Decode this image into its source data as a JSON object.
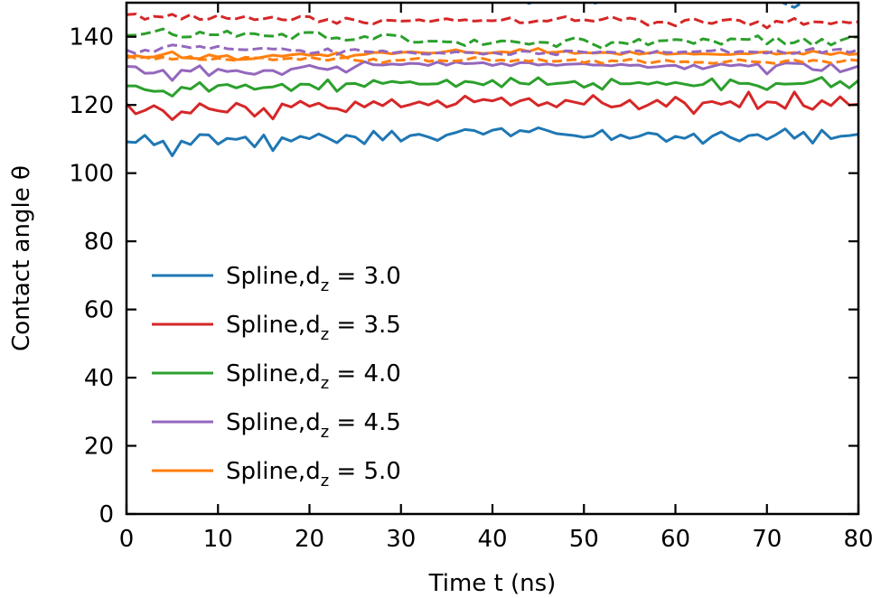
{
  "chart_data": {
    "type": "line",
    "xlabel": "Time t (ns)",
    "ylabel": "Contact angle θ",
    "xlim": [
      0,
      80
    ],
    "ylim": [
      0,
      150
    ],
    "xticks": [
      0,
      10,
      20,
      30,
      40,
      50,
      60,
      70,
      80
    ],
    "yticks": [
      0,
      20,
      40,
      60,
      80,
      100,
      120,
      140
    ],
    "x": [
      0,
      1,
      2,
      3,
      4,
      5,
      6,
      7,
      8,
      9,
      10,
      11,
      12,
      13,
      14,
      15,
      16,
      17,
      18,
      19,
      20,
      21,
      22,
      23,
      24,
      25,
      26,
      27,
      28,
      29,
      30,
      31,
      32,
      33,
      34,
      35,
      36,
      37,
      38,
      39,
      40,
      41,
      42,
      43,
      44,
      45,
      46,
      47,
      48,
      49,
      50,
      51,
      52,
      53,
      54,
      55,
      56,
      57,
      58,
      59,
      60,
      61,
      62,
      63,
      64,
      65,
      66,
      67,
      68,
      69,
      70,
      71,
      72,
      73,
      74,
      75,
      76,
      77,
      78,
      79,
      80
    ],
    "legend_position": "lower-left",
    "grid": false,
    "series": [
      {
        "name": "Spline,d_z = 3.0",
        "label_prefix": "Spline,d",
        "label_sub": "z",
        "label_value": "= 3.0",
        "color": "#1f77b4",
        "linestyle": "solid",
        "values": [
          109.2,
          109.0,
          111.1,
          108.3,
          109.4,
          105.1,
          109.4,
          108.4,
          111.3,
          111.2,
          108.5,
          110.2,
          109.9,
          110.6,
          107.7,
          111.2,
          106.6,
          110.4,
          109.4,
          110.8,
          110.1,
          111.5,
          110.3,
          108.9,
          111.1,
          110.6,
          108.6,
          112.3,
          109.7,
          112.3,
          109.4,
          111.0,
          111.4,
          110.6,
          109.6,
          111.2,
          111.9,
          112.8,
          112.5,
          111.4,
          112.6,
          113.1,
          110.9,
          112.5,
          112.1,
          113.3,
          112.5,
          111.6,
          111.3,
          111.0,
          110.5,
          110.9,
          112.6,
          109.8,
          111.2,
          110.2,
          110.8,
          111.8,
          111.4,
          109.3,
          110.8,
          110.2,
          111.5,
          108.7,
          110.8,
          112.1,
          110.5,
          109.4,
          111.0,
          111.3,
          109.9,
          111.3,
          113.0,
          110.2,
          112.0,
          108.8,
          112.6,
          110.1,
          110.8,
          111.0,
          111.4
        ]
      },
      {
        "name": "Spline,d_z = 3.5",
        "label_prefix": "Spline,d",
        "label_sub": "z",
        "label_value": "= 3.5",
        "color": "#d62728",
        "linestyle": "solid",
        "values": [
          120.3,
          117.4,
          118.4,
          119.8,
          118.3,
          115.7,
          118.0,
          117.6,
          120.4,
          118.9,
          118.3,
          117.9,
          120.5,
          119.4,
          116.7,
          119.0,
          115.9,
          120.3,
          119.4,
          121.1,
          119.6,
          120.5,
          119.1,
          118.9,
          118.0,
          120.9,
          119.4,
          121.0,
          119.8,
          121.6,
          119.4,
          120.1,
          120.9,
          120.0,
          121.2,
          119.4,
          120.3,
          122.6,
          120.9,
          121.6,
          121.2,
          122.1,
          119.9,
          121.2,
          121.9,
          119.8,
          120.7,
          119.4,
          121.4,
          120.8,
          120.2,
          122.8,
          120.6,
          119.4,
          119.8,
          121.4,
          118.8,
          120.0,
          121.4,
          119.6,
          122.3,
          120.6,
          117.5,
          120.6,
          121.0,
          120.2,
          121.0,
          119.4,
          123.8,
          118.9,
          120.9,
          120.7,
          119.0,
          123.8,
          119.8,
          118.7,
          121.3,
          119.8,
          122.4,
          120.0,
          120.2
        ]
      },
      {
        "name": "Spline,d_z = 4.0",
        "label_prefix": "Spline,d",
        "label_sub": "z",
        "label_value": "= 4.0",
        "color": "#2ca02c",
        "linestyle": "solid",
        "values": [
          125.6,
          125.6,
          124.5,
          124.0,
          124.1,
          122.6,
          125.2,
          124.7,
          126.6,
          124.0,
          125.7,
          126.0,
          125.0,
          125.9,
          124.6,
          125.1,
          125.3,
          126.1,
          124.2,
          126.1,
          126.0,
          124.6,
          127.4,
          124.0,
          126.2,
          126.3,
          125.4,
          127.2,
          126.3,
          126.9,
          126.5,
          126.8,
          126.1,
          126.1,
          126.2,
          127.3,
          125.4,
          126.9,
          126.6,
          125.9,
          127.2,
          125.3,
          127.9,
          126.4,
          126.1,
          128.0,
          126.0,
          126.3,
          126.5,
          126.9,
          125.2,
          126.3,
          124.6,
          127.6,
          126.2,
          126.2,
          126.6,
          126.1,
          126.7,
          126.0,
          126.6,
          126.1,
          125.6,
          126.0,
          127.7,
          124.4,
          127.4,
          126.3,
          126.3,
          125.6,
          124.5,
          126.3,
          126.1,
          126.2,
          126.3,
          127.0,
          128.1,
          125.3,
          126.9,
          125.0,
          127.2
        ]
      },
      {
        "name": "Spline,d_z = 4.5",
        "label_prefix": "Spline,d",
        "label_sub": "z",
        "label_value": "= 4.5",
        "color": "#9467bd",
        "linestyle": "solid",
        "values": [
          131.3,
          131.2,
          129.3,
          129.4,
          130.2,
          127.2,
          130.2,
          129.9,
          131.5,
          128.6,
          130.5,
          129.8,
          130.1,
          129.4,
          129.0,
          130.1,
          130.1,
          128.9,
          130.5,
          131.0,
          131.6,
          130.8,
          130.4,
          131.2,
          129.6,
          131.2,
          132.7,
          131.8,
          131.7,
          132.0,
          131.8,
          132.2,
          132.1,
          131.6,
          132.6,
          131.7,
          132.6,
          132.1,
          132.2,
          132.4,
          131.6,
          132.2,
          131.5,
          132.4,
          132.4,
          131.7,
          132.0,
          131.6,
          131.9,
          132.0,
          132.1,
          131.7,
          131.7,
          131.5,
          131.9,
          131.6,
          131.7,
          131.0,
          131.2,
          131.5,
          131.6,
          130.6,
          131.7,
          130.6,
          131.3,
          132.0,
          131.5,
          131.8,
          131.4,
          132.0,
          129.1,
          131.5,
          132.3,
          132.2,
          132.1,
          130.4,
          130.1,
          132.1,
          129.7,
          130.5,
          131.4
        ]
      },
      {
        "name": "Spline,d_z = 5.0",
        "label_prefix": "Spline,d",
        "label_sub": "z",
        "label_value": "= 5.0",
        "color": "#ff7f0e",
        "linestyle": "solid",
        "values": [
          133.8,
          134.5,
          134.0,
          134.1,
          134.8,
          135.6,
          133.9,
          133.7,
          133.6,
          134.7,
          134.1,
          134.5,
          133.3,
          133.4,
          133.6,
          134.1,
          134.6,
          134.3,
          134.7,
          135.0,
          134.6,
          134.8,
          134.4,
          135.3,
          133.9,
          134.6,
          134.8,
          135.4,
          135.4,
          135.0,
          135.4,
          135.6,
          135.4,
          135.2,
          135.3,
          135.7,
          136.2,
          135.5,
          135.4,
          135.1,
          135.3,
          135.6,
          135.4,
          136.3,
          135.7,
          136.6,
          135.4,
          135.5,
          135.8,
          135.1,
          135.4,
          135.2,
          135.4,
          135.3,
          134.8,
          135.6,
          134.9,
          135.2,
          135.5,
          134.9,
          135.0,
          135.2,
          134.9,
          135.0,
          134.9,
          134.8,
          134.8,
          135.1,
          135.0,
          135.4,
          135.6,
          134.9,
          135.2,
          135.4,
          134.9,
          135.8,
          135.3,
          134.8,
          135.4,
          134.8,
          135.0
        ]
      },
      {
        "name": "",
        "color": "#1f77b4",
        "linestyle": "dashed",
        "values": [
          null,
          null,
          null,
          null,
          null,
          null,
          null,
          null,
          null,
          null,
          null,
          null,
          null,
          null,
          null,
          null,
          null,
          null,
          null,
          null,
          null,
          null,
          null,
          null,
          null,
          null,
          null,
          null,
          null,
          null,
          null,
          null,
          null,
          null,
          null,
          null,
          null,
          null,
          null,
          null,
          null,
          null,
          150.5,
          151.0,
          149.8,
          151.0,
          150.6,
          150.9,
          151.2,
          150.4,
          150.9,
          149.7,
          150.5,
          151.0,
          150.2,
          150.7,
          151.0,
          150.4,
          151.3,
          150.6,
          150.2,
          151.0,
          150.9,
          150.7,
          150.5,
          151.1,
          150.7,
          150.9,
          151.2,
          150.9,
          150.3,
          151.0,
          149.7,
          148.6,
          150.3,
          150.3,
          150.7,
          150.8,
          151.1,
          150.5,
          150.7
        ]
      },
      {
        "name": "",
        "color": "#d62728",
        "linestyle": "dashed",
        "values": [
          146.5,
          146.7,
          145.1,
          146.0,
          145.8,
          146.6,
          145.2,
          146.5,
          145.1,
          145.2,
          146.3,
          145.4,
          145.3,
          146.0,
          145.0,
          145.3,
          145.8,
          145.0,
          144.9,
          146.0,
          145.9,
          144.4,
          145.1,
          143.9,
          145.5,
          144.9,
          144.1,
          143.8,
          144.9,
          144.8,
          144.6,
          144.7,
          145.0,
          144.4,
          144.9,
          145.3,
          144.7,
          145.0,
          144.6,
          144.8,
          144.7,
          144.9,
          145.6,
          144.1,
          144.2,
          144.7,
          144.6,
          145.3,
          145.9,
          144.7,
          145.0,
          144.6,
          145.1,
          145.9,
          144.9,
          145.5,
          145.0,
          143.4,
          144.3,
          144.3,
          143.2,
          144.8,
          145.3,
          144.3,
          143.9,
          144.8,
          145.1,
          144.8,
          143.4,
          144.4,
          142.6,
          144.6,
          144.1,
          145.4,
          143.6,
          144.4,
          144.3,
          143.8,
          144.5,
          144.1,
          144.4
        ]
      },
      {
        "name": "",
        "color": "#2ca02c",
        "linestyle": "dashed",
        "values": [
          140.4,
          140.5,
          140.9,
          141.5,
          142.3,
          140.7,
          139.9,
          140.0,
          141.4,
          140.6,
          140.6,
          141.7,
          140.1,
          141.0,
          140.9,
          140.3,
          140.2,
          140.8,
          139.3,
          141.2,
          141.3,
          141.2,
          139.4,
          139.7,
          139.0,
          139.2,
          140.1,
          139.4,
          140.7,
          140.5,
          140.2,
          138.4,
          138.4,
          138.7,
          138.7,
          138.5,
          138.5,
          137.4,
          139.1,
          137.7,
          138.2,
          138.8,
          138.7,
          138.3,
          137.8,
          138.4,
          138.3,
          137.1,
          138.9,
          139.7,
          139.1,
          137.8,
          136.6,
          138.3,
          138.3,
          137.9,
          139.3,
          137.6,
          138.8,
          138.9,
          139.2,
          139.0,
          138.0,
          139.4,
          138.9,
          137.8,
          139.4,
          139.3,
          139.2,
          140.3,
          137.9,
          139.9,
          137.9,
          138.3,
          139.5,
          137.5,
          139.3,
          137.6,
          138.9,
          139.8,
          140.0
        ]
      },
      {
        "name": "",
        "color": "#9467bd",
        "linestyle": "dashed",
        "values": [
          136.1,
          135.1,
          136.1,
          135.6,
          136.9,
          137.6,
          137.3,
          136.8,
          137.2,
          136.5,
          137.2,
          136.5,
          136.3,
          136.2,
          136.4,
          136.7,
          136.4,
          136.5,
          136.0,
          136.0,
          135.1,
          135.5,
          136.5,
          134.8,
          136.0,
          136.3,
          135.7,
          135.5,
          135.9,
          135.2,
          135.6,
          135.4,
          135.0,
          134.9,
          135.3,
          135.1,
          135.6,
          135.4,
          135.3,
          134.9,
          135.4,
          134.9,
          134.8,
          135.8,
          135.7,
          135.0,
          135.3,
          134.7,
          135.9,
          135.8,
          135.5,
          135.3,
          135.6,
          135.5,
          135.2,
          135.7,
          135.9,
          135.0,
          135.8,
          135.4,
          135.4,
          135.6,
          135.6,
          135.8,
          135.9,
          136.3,
          135.2,
          135.7,
          135.6,
          135.5,
          135.2,
          136.0,
          135.2,
          135.1,
          135.8,
          136.6,
          135.3,
          136.1,
          136.4,
          135.4,
          136.2
        ]
      },
      {
        "name": "",
        "color": "#ff7f0e",
        "linestyle": "dashed",
        "values": [
          134.6,
          133.7,
          134.0,
          133.4,
          134.0,
          133.4,
          133.7,
          134.2,
          133.3,
          133.3,
          133.7,
          133.3,
          133.1,
          134.0,
          133.8,
          133.8,
          133.2,
          133.5,
          133.7,
          133.3,
          134.0,
          133.5,
          133.1,
          133.7,
          133.9,
          133.1,
          132.8,
          133.5,
          132.4,
          133.1,
          133.1,
          133.4,
          133.7,
          132.8,
          133.1,
          132.9,
          132.9,
          133.2,
          133.9,
          133.6,
          132.9,
          133.2,
          132.8,
          133.3,
          132.8,
          133.4,
          132.8,
          132.8,
          133.1,
          133.3,
          132.4,
          133.1,
          132.2,
          133.0,
          132.8,
          133.4,
          133.0,
          132.2,
          132.7,
          133.1,
          132.6,
          132.7,
          132.5,
          132.5,
          132.2,
          132.4,
          132.9,
          133.3,
          132.8,
          132.6,
          132.5,
          132.1,
          132.9,
          133.2,
          132.5,
          133.1,
          132.9,
          132.3,
          132.7,
          133.3,
          133.0
        ]
      }
    ]
  }
}
